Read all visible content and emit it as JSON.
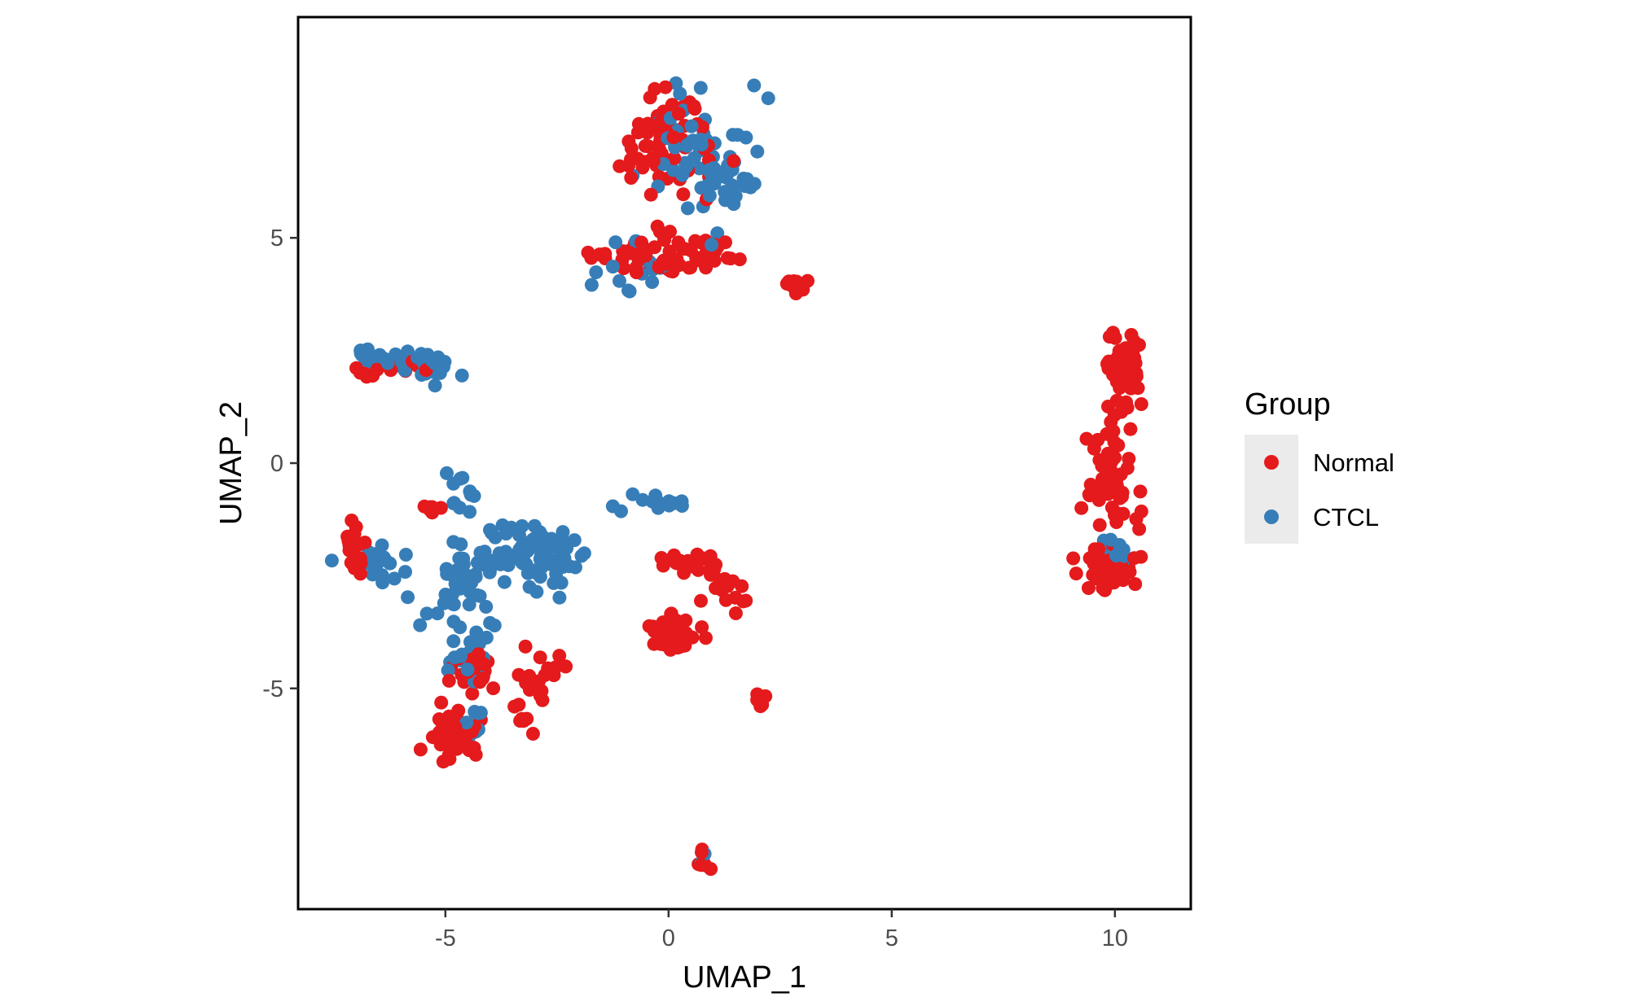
{
  "chart_data": {
    "type": "scatter",
    "xlabel": "UMAP_1",
    "ylabel": "UMAP_2",
    "xlim": [
      -8.3,
      11.7
    ],
    "ylim": [
      -9.9,
      9.9
    ],
    "x_ticks": [
      -5,
      0,
      5,
      10
    ],
    "y_ticks": [
      5,
      0,
      -5
    ],
    "x_tick_labels": [
      "-5",
      "0",
      "5",
      "10"
    ],
    "y_tick_labels": [
      "5",
      "0",
      "-5"
    ],
    "grid": false,
    "legend": {
      "title": "Group",
      "position": "right"
    },
    "series": [
      {
        "name": "Normal",
        "color": "#e41a1c",
        "clusters": [
          {
            "center": [
              0.0,
              7.2
            ],
            "spread": [
              0.7,
              0.9
            ],
            "n": 60
          },
          {
            "center": [
              -0.5,
              4.6
            ],
            "spread": [
              0.8,
              0.3
            ],
            "n": 45
          },
          {
            "center": [
              1.0,
              4.7
            ],
            "spread": [
              0.6,
              0.4
            ],
            "n": 20
          },
          {
            "center": [
              2.9,
              3.95
            ],
            "spread": [
              0.2,
              0.12
            ],
            "n": 12
          },
          {
            "center": [
              10.2,
              2.3
            ],
            "spread": [
              0.3,
              0.6
            ],
            "n": 50
          },
          {
            "center": [
              9.9,
              -0.5
            ],
            "spread": [
              0.35,
              0.8
            ],
            "n": 55
          },
          {
            "center": [
              10.0,
              -2.3
            ],
            "spread": [
              0.4,
              0.3
            ],
            "n": 50
          },
          {
            "center": [
              -6.8,
              2.0
            ],
            "spread": [
              0.3,
              0.12
            ],
            "n": 8
          },
          {
            "center": [
              -5.8,
              2.15
            ],
            "spread": [
              0.3,
              0.15
            ],
            "n": 10
          },
          {
            "center": [
              -7.0,
              -2.0
            ],
            "spread": [
              0.2,
              0.35
            ],
            "n": 18
          },
          {
            "center": [
              -5.3,
              -0.95
            ],
            "spread": [
              0.15,
              0.1
            ],
            "n": 6
          },
          {
            "center": [
              -4.8,
              -6.1
            ],
            "spread": [
              0.4,
              0.3
            ],
            "n": 55
          },
          {
            "center": [
              -4.4,
              -4.6
            ],
            "spread": [
              0.4,
              0.25
            ],
            "n": 25
          },
          {
            "center": [
              -3.0,
              -5.1
            ],
            "spread": [
              0.35,
              0.5
            ],
            "n": 20
          },
          {
            "center": [
              -2.4,
              -4.5
            ],
            "spread": [
              0.15,
              0.1
            ],
            "n": 6
          },
          {
            "center": [
              0.0,
              -3.8
            ],
            "spread": [
              0.35,
              0.3
            ],
            "n": 45
          },
          {
            "center": [
              0.5,
              -2.2
            ],
            "spread": [
              0.4,
              0.2
            ],
            "n": 20
          },
          {
            "center": [
              1.3,
              -2.8
            ],
            "spread": [
              0.3,
              0.3
            ],
            "n": 15
          },
          {
            "center": [
              2.1,
              -5.3
            ],
            "spread": [
              0.08,
              0.15
            ],
            "n": 6
          },
          {
            "center": [
              0.8,
              -8.9
            ],
            "spread": [
              0.1,
              0.15
            ],
            "n": 8
          }
        ]
      },
      {
        "name": "CTCL",
        "color": "#377eb8",
        "clusters": [
          {
            "center": [
              0.6,
              6.9
            ],
            "spread": [
              0.7,
              1.0
            ],
            "n": 55
          },
          {
            "center": [
              1.4,
              6.3
            ],
            "spread": [
              0.4,
              0.35
            ],
            "n": 25
          },
          {
            "center": [
              -0.8,
              4.3
            ],
            "spread": [
              0.5,
              0.4
            ],
            "n": 15
          },
          {
            "center": [
              -6.7,
              2.35
            ],
            "spread": [
              0.4,
              0.12
            ],
            "n": 20
          },
          {
            "center": [
              -5.5,
              2.2
            ],
            "spread": [
              0.5,
              0.25
            ],
            "n": 25
          },
          {
            "center": [
              -3.0,
              -2.0
            ],
            "spread": [
              0.8,
              0.5
            ],
            "n": 90
          },
          {
            "center": [
              -4.6,
              -2.8
            ],
            "spread": [
              0.6,
              0.8
            ],
            "n": 50
          },
          {
            "center": [
              -6.5,
              -2.2
            ],
            "spread": [
              0.5,
              0.3
            ],
            "n": 20
          },
          {
            "center": [
              -4.6,
              -0.7
            ],
            "spread": [
              0.3,
              0.4
            ],
            "n": 12
          },
          {
            "center": [
              -4.6,
              -4.3
            ],
            "spread": [
              0.3,
              0.3
            ],
            "n": 15
          },
          {
            "center": [
              -4.4,
              -5.8
            ],
            "spread": [
              0.2,
              0.3
            ],
            "n": 8
          },
          {
            "center": [
              -0.3,
              -0.9
            ],
            "spread": [
              0.6,
              0.15
            ],
            "n": 14
          },
          {
            "center": [
              10.0,
              -1.9
            ],
            "spread": [
              0.25,
              0.3
            ],
            "n": 12
          },
          {
            "center": [
              0.8,
              -8.8
            ],
            "spread": [
              0.05,
              0.1
            ],
            "n": 3
          }
        ]
      }
    ]
  }
}
